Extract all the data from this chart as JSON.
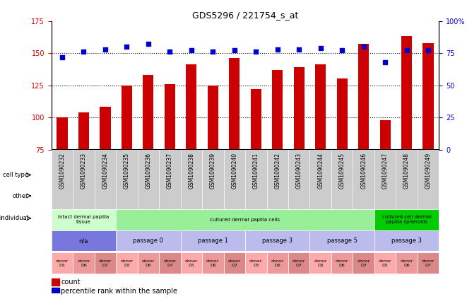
{
  "title": "GDS5296 / 221754_s_at",
  "samples": [
    "GSM1090232",
    "GSM1090233",
    "GSM1090234",
    "GSM1090235",
    "GSM1090236",
    "GSM1090237",
    "GSM1090238",
    "GSM1090239",
    "GSM1090240",
    "GSM1090241",
    "GSM1090242",
    "GSM1090243",
    "GSM1090244",
    "GSM1090245",
    "GSM1090246",
    "GSM1090247",
    "GSM1090248",
    "GSM1090249"
  ],
  "counts": [
    100,
    104,
    108,
    125,
    133,
    126,
    141,
    125,
    146,
    122,
    137,
    139,
    141,
    130,
    157,
    98,
    163,
    158
  ],
  "percentiles": [
    72,
    76,
    78,
    80,
    82,
    76,
    77,
    76,
    77,
    76,
    78,
    78,
    79,
    77,
    80,
    68,
    77,
    77
  ],
  "ylim_left": [
    75,
    175
  ],
  "ylim_right": [
    0,
    100
  ],
  "yticks_left": [
    75,
    100,
    125,
    150,
    175
  ],
  "yticks_right": [
    0,
    25,
    50,
    75,
    100
  ],
  "bar_color": "#cc0000",
  "dot_color": "#0000cc",
  "grid_color": "#000000",
  "cell_type_groups": [
    {
      "label": "intact dermal papilla\ntissue",
      "start": 0,
      "end": 3,
      "color": "#ccffcc"
    },
    {
      "label": "cultured dermal papilla cells",
      "start": 3,
      "end": 15,
      "color": "#99ee99"
    },
    {
      "label": "cultured cell dermal\npapilla spheroids",
      "start": 15,
      "end": 18,
      "color": "#00cc00"
    }
  ],
  "other_groups": [
    {
      "label": "n/a",
      "start": 0,
      "end": 3,
      "color": "#7777dd"
    },
    {
      "label": "passage 0",
      "start": 3,
      "end": 6,
      "color": "#bbbbee"
    },
    {
      "label": "passage 1",
      "start": 6,
      "end": 9,
      "color": "#bbbbee"
    },
    {
      "label": "passage 3",
      "start": 9,
      "end": 12,
      "color": "#bbbbee"
    },
    {
      "label": "passage 5",
      "start": 12,
      "end": 15,
      "color": "#bbbbee"
    },
    {
      "label": "passage 3",
      "start": 15,
      "end": 18,
      "color": "#bbbbee"
    }
  ],
  "individual_donors": [
    {
      "label": "donor\nD5",
      "color": "#ee8888"
    },
    {
      "label": "donor\nD6",
      "color": "#ee8888"
    },
    {
      "label": "donor\nD7",
      "color": "#ee8888"
    },
    {
      "label": "donor\nD5",
      "color": "#ee8888"
    },
    {
      "label": "donor\nD6",
      "color": "#ee8888"
    },
    {
      "label": "donor\nD7",
      "color": "#ee8888"
    },
    {
      "label": "donor\nD5",
      "color": "#ee8888"
    },
    {
      "label": "donor\nD6",
      "color": "#ee8888"
    },
    {
      "label": "donor\nD7",
      "color": "#ee8888"
    },
    {
      "label": "donor\nD5",
      "color": "#ee8888"
    },
    {
      "label": "donor\nD6",
      "color": "#ee8888"
    },
    {
      "label": "donor\nD7",
      "color": "#ee8888"
    },
    {
      "label": "donor\nD5",
      "color": "#ee8888"
    },
    {
      "label": "donor\nD6",
      "color": "#ee8888"
    },
    {
      "label": "donor\nD7",
      "color": "#ee8888"
    },
    {
      "label": "donor\nD5",
      "color": "#ee8888"
    },
    {
      "label": "donor\nD6",
      "color": "#ee8888"
    },
    {
      "label": "donor\nD7",
      "color": "#ee8888"
    }
  ],
  "row_labels": [
    "cell type",
    "other",
    "individual"
  ],
  "legend_items": [
    {
      "label": "count",
      "color": "#cc0000"
    },
    {
      "label": "percentile rank within the sample",
      "color": "#0000cc"
    }
  ],
  "fig_bg": "#ffffff",
  "ax_bg": "#ffffff"
}
